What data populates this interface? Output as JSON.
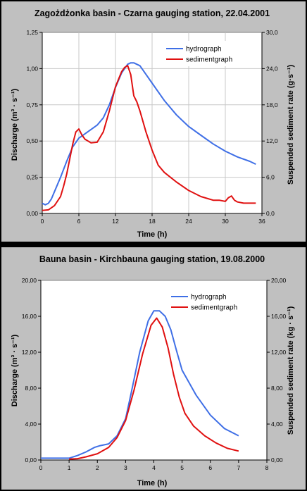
{
  "charts": [
    {
      "title": "Zagożdżonka basin - Czarna gauging station, 22.04.2001",
      "xlabel": "Time (h)",
      "ylabel_left": "Discharge (m³ · s⁻¹)",
      "ylabel_right": "Suspended sediment rate (g·s⁻¹)"
    },
    {
      "title": "Bauna basin - Kirchbauna gauging station, 19.08.2000",
      "xlabel": "Time (h)",
      "ylabel_left": "Discharge (m³ · s⁻¹)",
      "ylabel_right": "Suspended sediment rate (kg · s⁻¹)"
    }
  ],
  "colors": {
    "hydrograph": "#3f6fe6",
    "sedimentgraph": "#e01010",
    "plot_bg": "#ffffff",
    "frame_bg": "#c0c0c0"
  },
  "chart_data": [
    {
      "type": "line",
      "title": "Zagożdżonka basin - Czarna gauging station, 22.04.2001",
      "xlabel": "Time (h)",
      "ylabel": "Discharge (m³ · s⁻¹)",
      "y2label": "Suspended sediment rate (g·s⁻¹)",
      "xlim": [
        0,
        36
      ],
      "ylim": [
        0,
        1.25
      ],
      "y2lim": [
        0,
        30
      ],
      "xticks": [
        "0",
        "6",
        "12",
        "18",
        "24",
        "30",
        "36"
      ],
      "yticks": [
        "0,00",
        "0,25",
        "0,50",
        "0,75",
        "1,00",
        "1,25"
      ],
      "y2ticks": [
        "0,0",
        "6,0",
        "12,0",
        "18,0",
        "24,0",
        "30,0"
      ],
      "grid": true,
      "legend_position": "top-right",
      "series": [
        {
          "name": "hydrograph",
          "axis": "left",
          "x": [
            0,
            0.5,
            1,
            1.5,
            2,
            3,
            4,
            5,
            6,
            7,
            8,
            9,
            10,
            11,
            12,
            13,
            14,
            14.5,
            15,
            16,
            17,
            18,
            20,
            22,
            24,
            26,
            28,
            30,
            32,
            34,
            35
          ],
          "y": [
            0.07,
            0.06,
            0.07,
            0.1,
            0.15,
            0.25,
            0.36,
            0.46,
            0.52,
            0.55,
            0.58,
            0.61,
            0.66,
            0.75,
            0.87,
            0.97,
            1.03,
            1.04,
            1.04,
            1.02,
            0.96,
            0.9,
            0.78,
            0.68,
            0.6,
            0.54,
            0.48,
            0.43,
            0.39,
            0.36,
            0.34
          ]
        },
        {
          "name": "sedimentgraph",
          "axis": "right",
          "x": [
            0,
            1,
            2,
            3,
            3.5,
            4,
            4.5,
            5,
            5.5,
            6,
            6.5,
            7,
            8,
            9,
            10,
            11,
            12,
            13,
            13.5,
            14,
            14.5,
            15,
            15.5,
            16,
            17,
            18,
            19,
            20,
            22,
            24,
            26,
            28,
            29,
            30,
            30.5,
            31,
            31.5,
            32,
            33,
            35
          ],
          "y": [
            0.5,
            0.6,
            1.3,
            2.8,
            4.5,
            6.5,
            9,
            11.5,
            13.5,
            14,
            13,
            12.3,
            11.7,
            11.8,
            13.5,
            17,
            21,
            23.5,
            24.2,
            24.5,
            23,
            19.5,
            18.5,
            17,
            13.5,
            10.5,
            8,
            6.8,
            5.2,
            3.8,
            2.8,
            2.2,
            2.2,
            2,
            2.6,
            2.9,
            2.2,
            1.9,
            1.7,
            1.7
          ]
        }
      ]
    },
    {
      "type": "line",
      "title": "Bauna basin - Kirchbauna gauging station, 19.08.2000",
      "xlabel": "Time (h)",
      "ylabel": "Discharge (m³ · s⁻¹)",
      "y2label": "Suspended sediment rate (kg · s⁻¹)",
      "xlim": [
        0,
        8
      ],
      "ylim": [
        0,
        20
      ],
      "y2lim": [
        0,
        20
      ],
      "xticks": [
        "0",
        "1",
        "2",
        "3",
        "4",
        "5",
        "6",
        "7",
        "8"
      ],
      "yticks": [
        "0,00",
        "4,00",
        "8,00",
        "12,00",
        "16,00",
        "20,00"
      ],
      "y2ticks": [
        "0,00",
        "4,00",
        "8,00",
        "12,00",
        "16,00",
        "20,00"
      ],
      "grid": false,
      "legend_position": "top-right",
      "series": [
        {
          "name": "hydrograph",
          "axis": "left",
          "x": [
            0,
            1,
            1.3,
            1.6,
            1.9,
            2.1,
            2.4,
            2.7,
            3.0,
            3.2,
            3.5,
            3.8,
            4.0,
            4.2,
            4.4,
            4.6,
            4.8,
            5.0,
            5.5,
            6.0,
            6.5,
            7.0
          ],
          "y": [
            0.2,
            0.2,
            0.5,
            0.9,
            1.4,
            1.6,
            1.8,
            2.7,
            4.6,
            7.5,
            12,
            15.5,
            16.6,
            16.6,
            16,
            14.5,
            12.2,
            10,
            7.2,
            5,
            3.5,
            2.7
          ]
        },
        {
          "name": "sedimentgraph",
          "axis": "right",
          "x": [
            1,
            1.3,
            1.6,
            2.0,
            2.4,
            2.7,
            3.0,
            3.3,
            3.6,
            3.9,
            4.1,
            4.3,
            4.5,
            4.7,
            4.9,
            5.1,
            5.4,
            5.8,
            6.2,
            6.6,
            7.0
          ],
          "y": [
            0.1,
            0.15,
            0.35,
            0.7,
            1.4,
            2.5,
            4.4,
            7.8,
            11.8,
            15,
            15.8,
            14.8,
            12.5,
            9.5,
            7,
            5.2,
            3.8,
            2.7,
            1.9,
            1.3,
            1.0
          ]
        }
      ]
    }
  ]
}
